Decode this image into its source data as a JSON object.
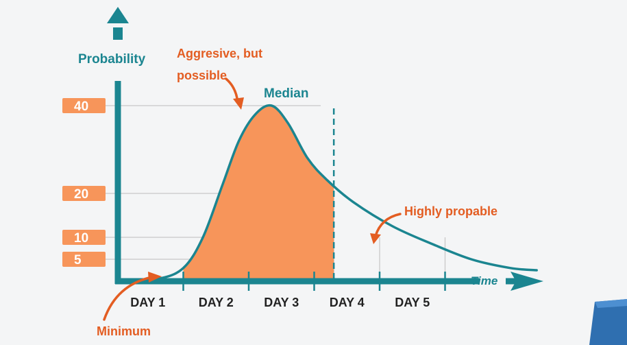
{
  "chart_data": {
    "type": "area",
    "title": "",
    "ylabel": "Probability",
    "xlabel": "Time",
    "categories": [
      "DAY 1",
      "DAY 2",
      "DAY 3",
      "DAY 4",
      "DAY 5"
    ],
    "y_ticks": [
      {
        "value": 40,
        "label": "40"
      },
      {
        "value": 20,
        "label": "20"
      },
      {
        "value": 10,
        "label": "10"
      },
      {
        "value": 5,
        "label": "5"
      }
    ],
    "ylim": [
      0,
      40
    ],
    "xlim": [
      0,
      6.4
    ],
    "curve": [
      {
        "x": 0.0,
        "y": 0
      },
      {
        "x": 0.6,
        "y": 0.5
      },
      {
        "x": 1.0,
        "y": 3
      },
      {
        "x": 1.3,
        "y": 10
      },
      {
        "x": 1.6,
        "y": 22
      },
      {
        "x": 1.85,
        "y": 32
      },
      {
        "x": 2.1,
        "y": 38
      },
      {
        "x": 2.35,
        "y": 40
      },
      {
        "x": 2.6,
        "y": 36
      },
      {
        "x": 2.9,
        "y": 28
      },
      {
        "x": 3.2,
        "y": 23
      },
      {
        "x": 3.6,
        "y": 18
      },
      {
        "x": 4.2,
        "y": 12.5
      },
      {
        "x": 4.8,
        "y": 8.5
      },
      {
        "x": 5.4,
        "y": 5
      },
      {
        "x": 6.0,
        "y": 3
      },
      {
        "x": 6.4,
        "y": 2.5
      }
    ],
    "shaded_range": [
      1.0,
      3.3
    ],
    "median_x": 3.3,
    "annotations": [
      {
        "text_lines": [
          "Aggresive, but",
          "possible"
        ],
        "x": 2.35,
        "y": 40
      },
      {
        "text_lines": [
          "Median"
        ],
        "x": 3.3,
        "y": 43
      },
      {
        "text_lines": [
          "Highly propable"
        ],
        "x": 4.8,
        "y": 8.5
      },
      {
        "text_lines": [
          "Minimum"
        ],
        "x": 0.6,
        "y": 0.5
      }
    ],
    "colors": {
      "axis": "#1b8590",
      "curve": "#1b8590",
      "fill": "#f7955a",
      "tick_badge": "#f7955a",
      "annotation": "#e35d22",
      "grid": "#c8c8c8"
    },
    "grid": true
  }
}
